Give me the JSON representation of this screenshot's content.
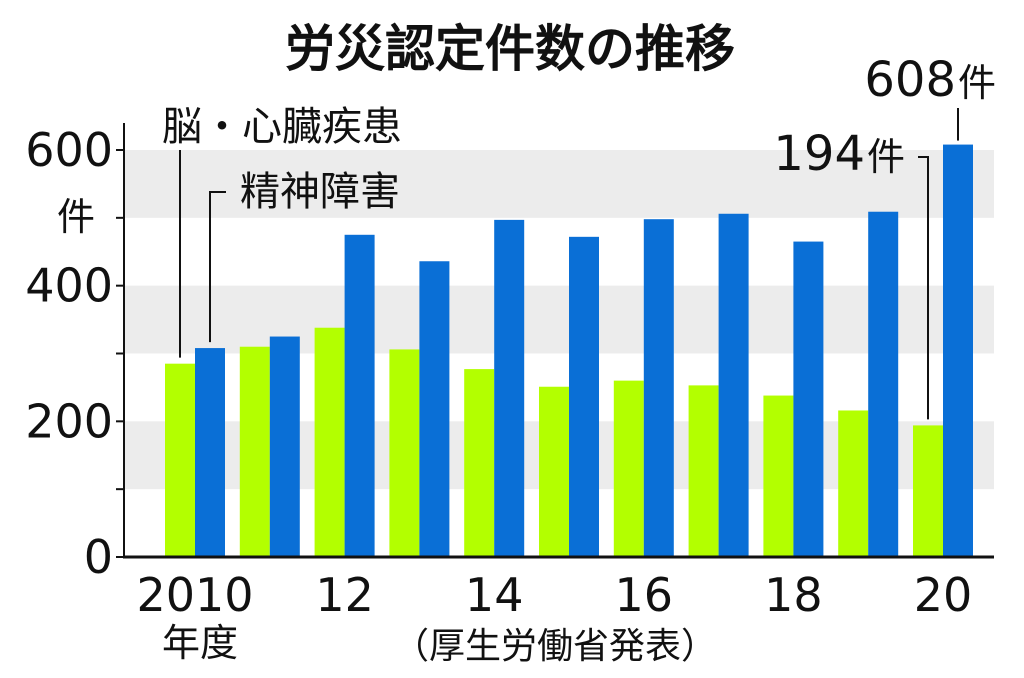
{
  "chart_data": {
    "type": "bar",
    "title": "労災認定件数の推移",
    "y_unit": "件",
    "ylim": [
      0,
      650
    ],
    "yticks": [
      0,
      200,
      400,
      600
    ],
    "grid_bands": true,
    "categories": [
      "2010",
      "2011",
      "2012",
      "2013",
      "2014",
      "2015",
      "2016",
      "2017",
      "2018",
      "2019",
      "2020"
    ],
    "x_tick_labels": [
      {
        "category": "2010",
        "label": "2010"
      },
      {
        "category": "2012",
        "label": "12"
      },
      {
        "category": "2014",
        "label": "14"
      },
      {
        "category": "2016",
        "label": "16"
      },
      {
        "category": "2018",
        "label": "18"
      },
      {
        "category": "2020",
        "label": "20"
      }
    ],
    "x_unit": "年度",
    "series": [
      {
        "name": "脳・心臓疾患",
        "color": "#b3ff00",
        "values": [
          285,
          310,
          338,
          306,
          277,
          251,
          260,
          253,
          238,
          216,
          194
        ]
      },
      {
        "name": "精神障害",
        "color": "#0a6fd6",
        "values": [
          308,
          325,
          475,
          436,
          497,
          472,
          498,
          506,
          465,
          509,
          608
        ]
      }
    ],
    "annotations": [
      {
        "series": 1,
        "category": "2020",
        "number": "608",
        "unit": "件"
      },
      {
        "series": 0,
        "category": "2020",
        "number": "194",
        "unit": "件"
      }
    ],
    "source": "（厚生労働省発表）"
  }
}
